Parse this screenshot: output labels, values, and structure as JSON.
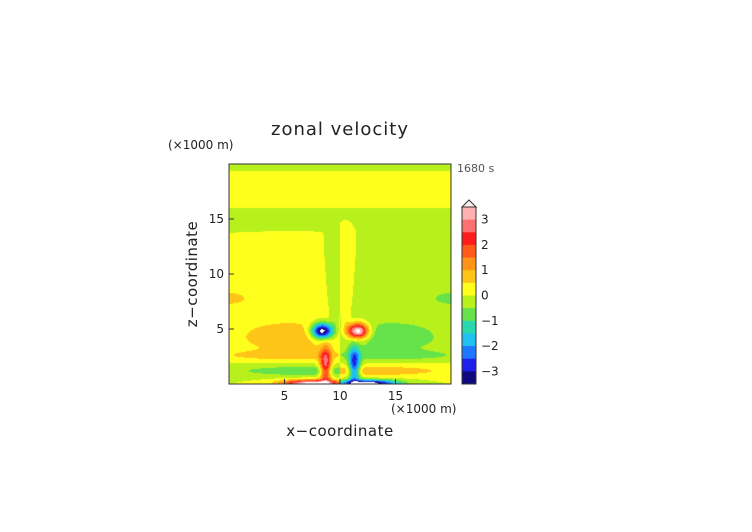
{
  "chart_data": {
    "type": "heatmap",
    "title": "zonal velocity",
    "xlabel": "x−coordinate",
    "ylabel": "z−coordinate",
    "x_unit": "(×1000 m)",
    "z_unit": "(×1000 m)",
    "time_label": "1680 s",
    "xlim": [
      0,
      20
    ],
    "ylim": [
      0,
      20
    ],
    "x_ticks": [
      5,
      10,
      15
    ],
    "y_ticks": [
      5,
      10,
      15
    ],
    "colorbar": {
      "ticks": [
        "3",
        "2",
        "1",
        "0",
        "−1",
        "−2",
        "−3"
      ],
      "tick_values": [
        3,
        2,
        1,
        0,
        -1,
        -2,
        -3
      ],
      "min": -3.5,
      "max": 3.5,
      "extend_top": true,
      "colors_top_to_bottom": [
        "#ffb0b0",
        "#ff7070",
        "#ff1c1c",
        "#ff5a1a",
        "#ff9416",
        "#ffc418",
        "#ffff1e",
        "#b8f01c",
        "#66e24a",
        "#2ad8b0",
        "#20c0f0",
        "#1e78ff",
        "#1c20e8",
        "#11097e"
      ]
    },
    "features": [
      {
        "kind": "band",
        "z_range": [
          18.2,
          19.4
        ],
        "x_range": [
          0,
          10
        ],
        "value": 0.1
      },
      {
        "kind": "band",
        "z_range": [
          16,
          18.2
        ],
        "x_range": [
          0,
          10
        ],
        "value": 0.3
      },
      {
        "kind": "band",
        "z_range": [
          18.2,
          19.4
        ],
        "x_range": [
          10,
          20
        ],
        "value": 0.3
      },
      {
        "kind": "band",
        "z_range": [
          16,
          18.2
        ],
        "x_range": [
          10,
          20
        ],
        "value": 0.1
      },
      {
        "kind": "cell",
        "x": 8.4,
        "z": 4.8,
        "value": -3.6
      },
      {
        "kind": "cell",
        "x": 11.6,
        "z": 4.8,
        "value": 3.6
      },
      {
        "kind": "jet",
        "x": 8.7,
        "z": 1.5,
        "value": 2.5
      },
      {
        "kind": "jet",
        "x": 11.3,
        "z": 1.5,
        "value": -2.5
      },
      {
        "kind": "surface",
        "x": 7.5,
        "z": 0.1,
        "value": 3.6
      },
      {
        "kind": "surface",
        "x": 13.5,
        "z": 0.1,
        "value": -3.4
      }
    ]
  }
}
